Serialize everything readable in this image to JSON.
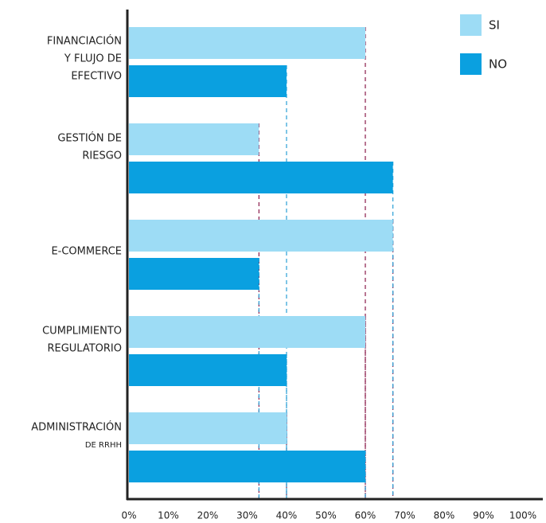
{
  "chart_data": {
    "type": "hbar",
    "categories": [
      [
        "FINANCIACIÓN",
        "Y FLUJO DE",
        "EFECTIVO"
      ],
      [
        "GESTIÓN DE",
        "RIESGO"
      ],
      [
        "E-COMMERCE"
      ],
      [
        "CUMPLIMIENTO",
        "REGULATORIO"
      ],
      [
        "ADMINISTRACIÓN",
        "DE RRHH"
      ]
    ],
    "series": [
      {
        "name": "SI",
        "color": "#9ddcf5",
        "line_color": "#8a1a4a",
        "values": [
          60,
          33,
          67,
          60,
          40
        ]
      },
      {
        "name": "NO",
        "color": "#0aa0e0",
        "line_color": "#2a9fd6",
        "values": [
          40,
          67,
          33,
          40,
          60
        ]
      }
    ],
    "xlim": [
      0,
      100
    ],
    "xticks": [
      {
        "value": 0,
        "label": "0%"
      },
      {
        "value": 10,
        "label": "10%"
      },
      {
        "value": 20,
        "label": "20%"
      },
      {
        "value": 30,
        "label": "30%"
      },
      {
        "value": 40,
        "label": "40%"
      },
      {
        "value": 50,
        "label": "50%"
      },
      {
        "value": 60,
        "label": "60%"
      },
      {
        "value": 70,
        "label": "70%"
      },
      {
        "value": 80,
        "label": "80%"
      },
      {
        "value": 90,
        "label": "90%"
      },
      {
        "value": 100,
        "label": "100%"
      }
    ],
    "legend": "top-right"
  }
}
